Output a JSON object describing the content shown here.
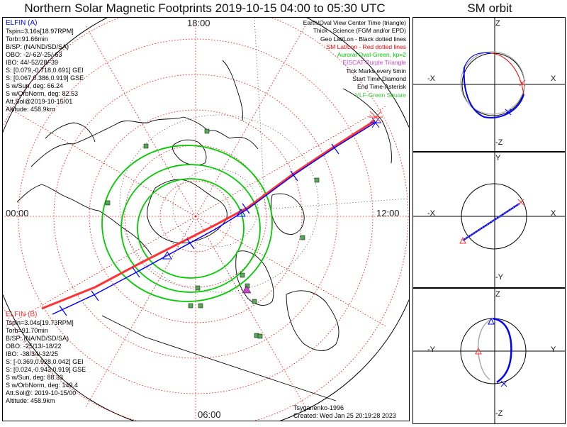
{
  "title": "Northern Solar Magnetic Footprints 2019-10-15 04:00 to 05:30 UTC",
  "sm_title": "SM orbit",
  "time_labels": {
    "top": "18:00",
    "bottom": "06:00",
    "left": "00:00",
    "right": "12:00"
  },
  "elfin_a": {
    "name": "ELFIN (A)",
    "color": "#0000ff",
    "lines": [
      "Tspin=3.16s[18.97RPM]",
      "Torb=91.66min",
      "B/SP: (NA/ND/SD/SA)",
      "OBO: -2/-62/-25/-63",
      "IBO: 44/-52/28/-39",
      "S: [0.079,-0.718,0.691] GEI",
      "S: [0.067,0.386,0.919] GSE",
      "S w/Sun, deg: 66.24",
      "S w/OrbNorm, deg: 82.53",
      "Att.Sol@2019-10-15/01",
      "Altitude: 458.9km"
    ]
  },
  "elfin_b": {
    "name": "ELFIN (B)",
    "color": "#ff0000",
    "lines": [
      "Tspin=3.04s[19.73RPM]",
      "Torb=91.70min",
      "B/SP: (NA/ND/SD/SA)",
      "OBO: -25/13/-18/22",
      "IBO: -38/34/-32/25",
      "S: [-0.369,0.928,0.042] GEI",
      "S: [0.024,-0.943,0.919] GSE",
      "S w/Sun, deg: 88.33",
      "S w/OrbNorm, deg: 149.4",
      "Att.Sol@: 2019-10-15/00",
      "Altitude: 458.9km"
    ]
  },
  "legend": [
    {
      "text": "Earth/Oval View Center Time (triangle)",
      "color": "#000000"
    },
    {
      "text": "Thick - Science (FGM and/or EPD)",
      "color": "#000000"
    },
    {
      "text": "Geo Lat/Lon - Black dotted lines",
      "color": "#000000"
    },
    {
      "text": "SM Lat/Lon - Red dotted lines",
      "color": "#ff0000"
    },
    {
      "text": "Auroral Oval-Green, kp=2",
      "color": "#00cc00"
    },
    {
      "text": "EISCAT-Purple Triangle",
      "color": "#cc44cc"
    },
    {
      "text": "Tick Marks every 5min",
      "color": "#000000"
    },
    {
      "text": "Start Time-Diamond",
      "color": "#000000"
    },
    {
      "text": "End Time-Asterisk",
      "color": "#000000"
    },
    {
      "text": "VLF-Green Square",
      "color": "#33cc33"
    }
  ],
  "credits": {
    "author": "Tsyganenko-1996",
    "created": "Created: Wed Jan 25 20:19:28 2023"
  },
  "orbit_panels": [
    {
      "top": "Z",
      "bottom": "-Z",
      "left": "-X",
      "right": "X"
    },
    {
      "top": "Y",
      "bottom": "-Y",
      "left": "-X",
      "right": "X"
    },
    {
      "top": "Z",
      "bottom": "-Z",
      "left": "-Y",
      "right": "Y"
    }
  ],
  "colors": {
    "elfin_a": "#0000ff",
    "elfin_b": "#ff0000",
    "sm_grid": "#ff0000",
    "geo_grid": "#000000",
    "auroral_oval": "#00cc00",
    "vlf": "#33aa33",
    "eiscat": "#cc44cc"
  }
}
